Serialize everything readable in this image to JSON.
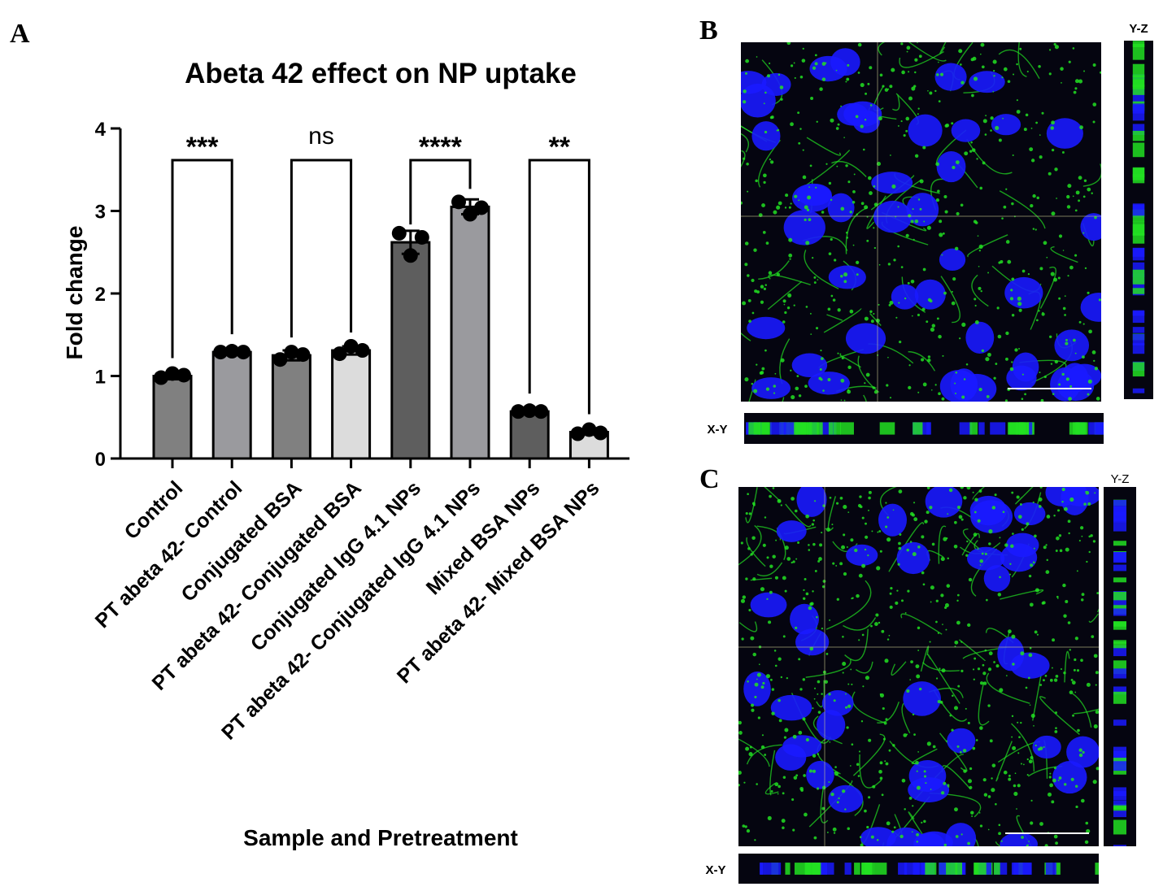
{
  "panels": {
    "A": "A",
    "B": "B",
    "C": "C"
  },
  "microscopy": {
    "B": {
      "yz_label": "Y-Z",
      "xy_label": "X-Y"
    },
    "C": {
      "yz_label": "Y-Z",
      "xy_label": "X-Y"
    },
    "nucleus_color": "#1a1aff",
    "stain_color": "#22e022",
    "background_color": "#050510"
  },
  "chart_data": {
    "type": "bar",
    "title": "Abeta 42 effect on NP uptake",
    "xlabel": "Sample and Pretreatment",
    "ylabel": "Fold change",
    "ylim": [
      0,
      4
    ],
    "yticks": [
      0,
      1,
      2,
      3,
      4
    ],
    "categories": [
      "Control",
      "PT abeta 42- Control",
      "Conjugated BSA",
      "PT abeta 42- Conjugated BSA",
      "Conjugated IgG 4.1 NPs",
      "PT abeta 42- Conjugated IgG 4.1 NPs",
      "Mixed BSA NPs",
      "PT abeta 42- Mixed BSA NPs"
    ],
    "values": [
      1.0,
      1.29,
      1.25,
      1.31,
      2.62,
      3.05,
      0.57,
      0.32
    ],
    "errors": [
      0.04,
      0.02,
      0.06,
      0.05,
      0.14,
      0.09,
      0.02,
      0.03
    ],
    "points": [
      [
        0.98,
        1.03,
        1.01
      ],
      [
        1.29,
        1.3,
        1.29
      ],
      [
        1.2,
        1.29,
        1.26
      ],
      [
        1.27,
        1.36,
        1.31
      ],
      [
        2.73,
        2.46,
        2.68
      ],
      [
        3.11,
        2.96,
        3.04
      ],
      [
        0.57,
        0.58,
        0.57
      ],
      [
        0.3,
        0.35,
        0.31
      ]
    ],
    "bar_colors": [
      "#808080",
      "#9a9a9e",
      "#808080",
      "#dcdcdc",
      "#5e5e5e",
      "#9a9a9e",
      "#5e5e5e",
      "#dcdcdc"
    ],
    "comparisons": [
      {
        "pair": [
          0,
          1
        ],
        "label": "***"
      },
      {
        "pair": [
          2,
          3
        ],
        "label": "ns"
      },
      {
        "pair": [
          4,
          5
        ],
        "label": "****"
      },
      {
        "pair": [
          6,
          7
        ],
        "label": "**"
      }
    ],
    "grid": false,
    "legend": "none"
  }
}
